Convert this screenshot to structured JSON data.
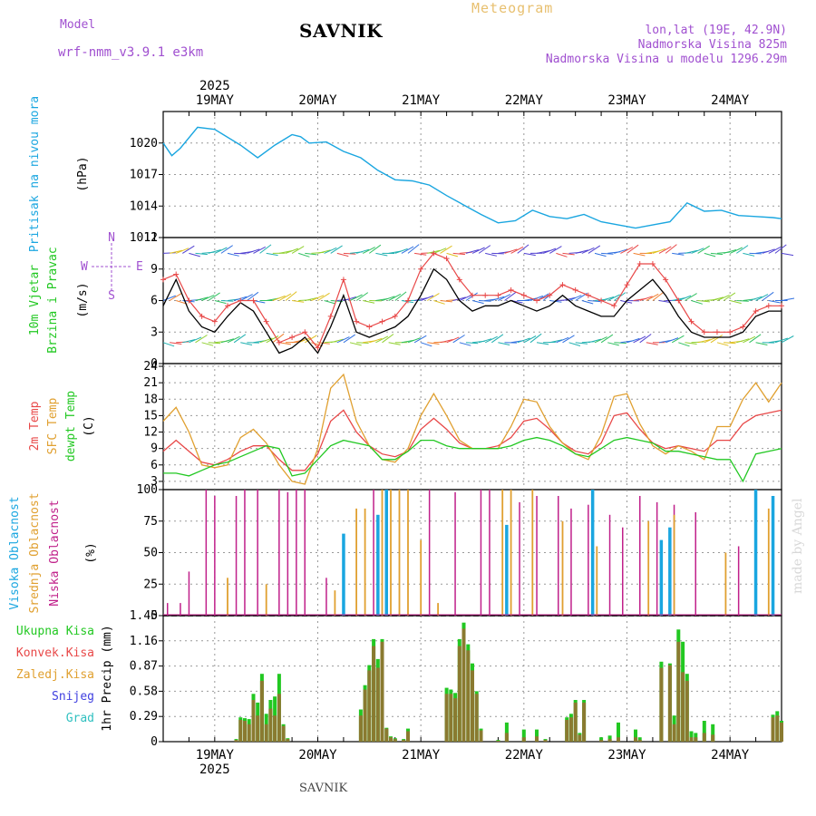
{
  "header": {
    "model_label": "Model",
    "model_name": "wrf-nmm_v3.9.1 e3km",
    "title": "SAVNIK",
    "meteogram_label": "Meteogram",
    "location_coords": "lon,lat (19E, 42.9N)",
    "elevation": "Nadmorska Visina 825m",
    "model_elevation": "Nadmorska Visina u modelu 1296.29m"
  },
  "footer": {
    "station": "SAVNIK",
    "credit": "made by Angel"
  },
  "colors": {
    "pressure": "#1aa6e0",
    "t2m": "#e84848",
    "sfc": "#e0a030",
    "dew": "#22c822",
    "high_cloud": "#1aa6e0",
    "mid_cloud": "#e0a030",
    "low_cloud": "#c0208a",
    "total_precip": "#22c822",
    "conv_precip": "#e84848",
    "snow": "#4040e0",
    "graupel": "#30c0c0",
    "axis_label_violet": "#a050d0"
  },
  "time_axis": {
    "year": "2025",
    "days": [
      "19MAY",
      "20MAY",
      "21MAY",
      "22MAY",
      "23MAY",
      "24MAY"
    ],
    "start_hour": 0,
    "end_hour": 144
  },
  "compass": {
    "n": "N",
    "e": "E",
    "w": "W",
    "s": "S"
  },
  "chart_data": [
    {
      "id": "pressure",
      "type": "line",
      "ylabel_title": "Pritisak na nivou mora",
      "ylabel_unit": "(hPa)",
      "yticks": [
        1011,
        1014,
        1017,
        1020
      ],
      "ylim": [
        1011,
        1023
      ],
      "x": [
        0,
        2,
        4,
        8,
        12,
        14,
        18,
        22,
        26,
        30,
        32,
        34,
        38,
        42,
        46,
        50,
        54,
        58,
        62,
        66,
        70,
        74,
        78,
        82,
        86,
        90,
        94,
        98,
        102,
        106,
        110,
        114,
        118,
        122,
        126,
        130,
        134,
        138,
        142,
        144
      ],
      "series": [
        {
          "name": "Pritisak",
          "values": [
            1020.0,
            1018.8,
            1019.5,
            1021.5,
            1021.3,
            1020.8,
            1019.8,
            1018.6,
            1019.8,
            1020.8,
            1020.6,
            1020.0,
            1020.1,
            1019.2,
            1018.6,
            1017.4,
            1016.5,
            1016.4,
            1016.0,
            1015.0,
            1014.1,
            1013.2,
            1012.4,
            1012.6,
            1013.6,
            1013.0,
            1012.8,
            1013.2,
            1012.5,
            1012.2,
            1011.9,
            1012.2,
            1012.5,
            1014.3,
            1013.5,
            1013.6,
            1013.1,
            1013.0,
            1012.9,
            1012.8
          ]
        }
      ]
    },
    {
      "id": "wind",
      "type": "line",
      "ylabel_title": "10m Vjetar",
      "ylabel_sub": "Brzina i Pravac",
      "ylabel_unit": "(m/s)",
      "yticks": [
        0,
        3,
        6,
        9,
        12
      ],
      "ylim": [
        0,
        12
      ],
      "x": [
        0,
        3,
        6,
        9,
        12,
        15,
        18,
        21,
        24,
        27,
        30,
        33,
        36,
        39,
        42,
        45,
        48,
        51,
        54,
        57,
        60,
        63,
        66,
        69,
        72,
        75,
        78,
        81,
        84,
        87,
        90,
        93,
        96,
        99,
        102,
        105,
        108,
        111,
        114,
        117,
        120,
        123,
        126,
        129,
        132,
        135,
        138,
        141,
        144
      ],
      "series": [
        {
          "name": "Brzina",
          "values": [
            5.5,
            8.0,
            5.0,
            3.5,
            3.0,
            4.5,
            5.8,
            5.0,
            3.0,
            1.0,
            1.5,
            2.5,
            1.0,
            3.5,
            6.5,
            3.0,
            2.5,
            3.0,
            3.5,
            4.5,
            6.5,
            9.0,
            8.0,
            6.0,
            5.0,
            5.5,
            5.5,
            6.0,
            5.5,
            5.0,
            5.5,
            6.5,
            5.5,
            5.0,
            4.5,
            4.5,
            6.0,
            7.0,
            8.0,
            6.5,
            4.5,
            3.0,
            2.5,
            2.5,
            2.5,
            3.0,
            4.5,
            5.0,
            5.0
          ]
        },
        {
          "name": "Udari",
          "values": [
            8.0,
            8.5,
            6.0,
            4.5,
            4.0,
            5.5,
            6.0,
            6.0,
            4.0,
            2.0,
            2.5,
            3.0,
            1.5,
            4.5,
            8.0,
            4.0,
            3.5,
            4.0,
            4.5,
            6.0,
            9.0,
            10.5,
            10.0,
            8.0,
            6.5,
            6.5,
            6.5,
            7.0,
            6.5,
            6.0,
            6.5,
            7.5,
            7.0,
            6.5,
            6.0,
            5.5,
            7.5,
            9.5,
            9.5,
            8.0,
            6.0,
            4.0,
            3.0,
            3.0,
            3.0,
            3.5,
            5.0,
            5.5,
            5.5
          ]
        }
      ],
      "barb_levels": [
        2.0,
        6.0,
        10.5
      ]
    },
    {
      "id": "temperature",
      "type": "line",
      "ylabel_title": "2m Temp",
      "ylabel_sub": "SFC Temp",
      "ylabel_sub2": "dewpt Temp",
      "ylabel_unit": "(C)",
      "yticks": [
        3,
        6,
        9,
        12,
        15,
        18,
        21,
        24
      ],
      "ylim": [
        1.5,
        24.5
      ],
      "x": [
        0,
        3,
        6,
        9,
        12,
        15,
        18,
        21,
        24,
        27,
        30,
        33,
        36,
        39,
        42,
        45,
        48,
        51,
        54,
        57,
        60,
        63,
        66,
        69,
        72,
        75,
        78,
        81,
        84,
        87,
        90,
        93,
        96,
        99,
        102,
        105,
        108,
        111,
        114,
        117,
        120,
        123,
        126,
        129,
        132,
        135,
        138,
        141,
        144
      ],
      "series": [
        {
          "name": "2m Temp",
          "values": [
            8.5,
            10.5,
            8.5,
            6.5,
            6.0,
            7.0,
            8.5,
            9.5,
            9.5,
            7.0,
            5.0,
            5.0,
            8.0,
            14.0,
            16.0,
            12.0,
            9.5,
            8.0,
            7.5,
            8.5,
            12.5,
            14.5,
            12.5,
            10.0,
            9.0,
            9.0,
            9.5,
            11.0,
            14.0,
            14.5,
            12.5,
            10.0,
            8.5,
            8.0,
            10.0,
            15.0,
            15.5,
            12.5,
            10.0,
            9.0,
            9.5,
            9.0,
            8.5,
            10.5,
            10.5,
            13.5,
            15.0,
            15.5,
            16.0
          ]
        },
        {
          "name": "SFC Temp",
          "values": [
            14.0,
            16.5,
            12.0,
            6.0,
            5.5,
            6.0,
            11.0,
            12.5,
            10.0,
            6.0,
            3.0,
            2.5,
            9.0,
            20.0,
            22.5,
            14.0,
            9.5,
            7.0,
            6.5,
            9.0,
            15.0,
            19.0,
            15.0,
            10.5,
            9.0,
            9.0,
            9.0,
            13.0,
            18.0,
            17.5,
            13.0,
            10.0,
            8.0,
            7.0,
            11.5,
            18.5,
            19.0,
            13.5,
            9.5,
            8.0,
            9.5,
            8.5,
            7.0,
            13.0,
            13.0,
            18.0,
            21.0,
            17.5,
            21.0
          ]
        },
        {
          "name": "dewpt Temp",
          "values": [
            4.5,
            4.5,
            4.0,
            5.0,
            6.0,
            6.5,
            7.5,
            8.5,
            9.5,
            9.0,
            4.0,
            4.5,
            7.0,
            9.5,
            10.5,
            10.0,
            9.5,
            7.0,
            7.0,
            8.5,
            10.5,
            10.5,
            9.5,
            9.0,
            9.0,
            9.0,
            9.0,
            9.5,
            10.5,
            11.0,
            10.5,
            9.5,
            8.0,
            7.5,
            9.0,
            10.5,
            11.0,
            10.5,
            10.0,
            8.5,
            8.5,
            8.0,
            7.5,
            7.0,
            7.0,
            3.0,
            8.0,
            8.5,
            9.0
          ]
        }
      ]
    },
    {
      "id": "cloud",
      "type": "bar",
      "ylabel_title": "Visoka Oblacnost",
      "ylabel_sub": "Srednja Oblacnost",
      "ylabel_sub2": "Niska Oblacnost",
      "ylabel_unit": "(%)",
      "yticks": [
        0,
        25,
        50,
        75,
        100
      ],
      "ylim": [
        0,
        100
      ],
      "series": [
        {
          "name": "Niska Oblacnost",
          "x": [
            1,
            4,
            6,
            10,
            12,
            17,
            19,
            22,
            27,
            29,
            31,
            33,
            38,
            49,
            62,
            68,
            74,
            76,
            83,
            87,
            92,
            95,
            99,
            104,
            107,
            111,
            115,
            119,
            124,
            134
          ],
          "values": [
            10,
            10,
            35,
            100,
            95,
            95,
            100,
            100,
            100,
            98,
            100,
            100,
            30,
            100,
            100,
            98,
            100,
            100,
            90,
            95,
            95,
            85,
            88,
            80,
            70,
            95,
            90,
            88,
            82,
            55
          ]
        },
        {
          "name": "Srednja Oblacnost",
          "x": [
            15,
            24,
            40,
            45,
            47,
            51,
            53,
            55,
            57,
            60,
            64,
            79,
            81,
            86,
            93,
            101,
            113,
            119,
            131,
            141
          ],
          "values": [
            30,
            25,
            20,
            85,
            85,
            100,
            100,
            100,
            100,
            60,
            10,
            100,
            100,
            100,
            75,
            55,
            75,
            80,
            50,
            85
          ]
        },
        {
          "name": "Visoka Oblacnost",
          "x": [
            42,
            50,
            52,
            80,
            100,
            116,
            118,
            138,
            142
          ],
          "values": [
            65,
            80,
            100,
            72,
            100,
            60,
            70,
            100,
            95
          ]
        }
      ]
    },
    {
      "id": "precip",
      "type": "bar",
      "ylabel_title": "1hr Precip",
      "ylabel_unit": "(mm)",
      "yticks": [
        0,
        0.29,
        0.58,
        0.87,
        1.16,
        1.45
      ],
      "ytick_labels": [
        "0",
        "0.29",
        "0.58",
        "0.87",
        "1.16",
        "1.45"
      ],
      "ylim": [
        0,
        1.45
      ],
      "legend": [
        "Ukupna Kisa",
        "Konvek.Kisa",
        "Zaledj.Kisa",
        "Snijeg",
        "Grad"
      ],
      "x": [
        17,
        18,
        19,
        20,
        21,
        22,
        23,
        24,
        25,
        26,
        27,
        28,
        29,
        46,
        47,
        48,
        49,
        50,
        51,
        52,
        53,
        54,
        56,
        57,
        66,
        67,
        68,
        69,
        70,
        71,
        72,
        73,
        74,
        78,
        80,
        84,
        87,
        89,
        94,
        95,
        96,
        97,
        98,
        102,
        104,
        106,
        110,
        111,
        116,
        118,
        119,
        120,
        121,
        122,
        123,
        124,
        126,
        128,
        142,
        143,
        144
      ],
      "series": [
        {
          "name": "Ukupna Kisa",
          "values": [
            0.03,
            0.28,
            0.27,
            0.26,
            0.55,
            0.45,
            0.78,
            0.32,
            0.48,
            0.52,
            0.78,
            0.2,
            0.04,
            0.37,
            0.65,
            0.88,
            1.18,
            0.95,
            1.18,
            0.16,
            0.06,
            0.04,
            0.03,
            0.15,
            0.62,
            0.6,
            0.56,
            1.18,
            1.37,
            1.12,
            0.9,
            0.58,
            0.15,
            0.02,
            0.22,
            0.14,
            0.14,
            0.03,
            0.28,
            0.32,
            0.48,
            0.1,
            0.48,
            0.05,
            0.07,
            0.22,
            0.14,
            0.05,
            0.92,
            0.9,
            0.3,
            1.29,
            1.15,
            0.78,
            0.12,
            0.1,
            0.24,
            0.2,
            0.31,
            0.35,
            0.24
          ]
        },
        {
          "name": "Konvek.Kisa",
          "values": [
            0.02,
            0.25,
            0.24,
            0.2,
            0.48,
            0.3,
            0.7,
            0.2,
            0.38,
            0.3,
            0.55,
            0.18,
            0.03,
            0.3,
            0.6,
            0.82,
            1.1,
            0.85,
            1.15,
            0.15,
            0.05,
            0.03,
            0.02,
            0.12,
            0.55,
            0.55,
            0.5,
            1.1,
            1.3,
            1.05,
            0.82,
            0.55,
            0.13,
            0.01,
            0.1,
            0.05,
            0.06,
            0.02,
            0.25,
            0.28,
            0.45,
            0.08,
            0.45,
            0.02,
            0.03,
            0.05,
            0.05,
            0.02,
            0.85,
            0.88,
            0.2,
            1.15,
            0.8,
            0.7,
            0.05,
            0.05,
            0.1,
            0.08,
            0.28,
            0.3,
            0.22
          ]
        }
      ]
    }
  ]
}
